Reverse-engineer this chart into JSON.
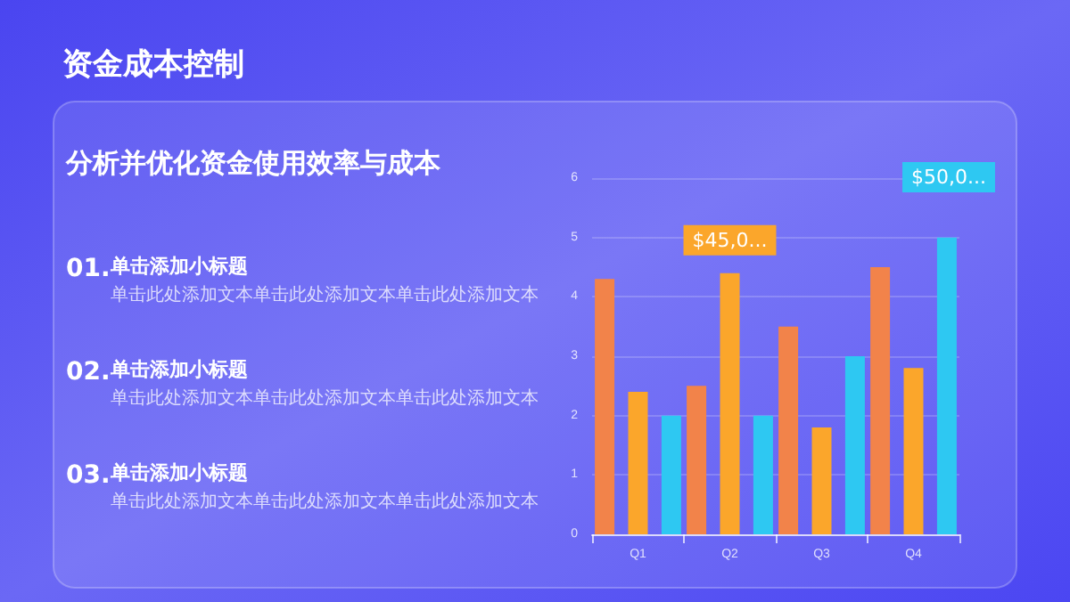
{
  "chart_data": {
    "type": "bar",
    "title": "资金成本控制",
    "subtitle": "分析并优化资金使用效率与成本",
    "categories": [
      "Q1",
      "Q2",
      "Q3",
      "Q4"
    ],
    "series": [
      {
        "color": "#f2834a",
        "values": [
          4.3,
          2.5,
          3.5,
          4.5
        ]
      },
      {
        "color": "#fba62b",
        "values": [
          2.4,
          4.4,
          1.8,
          2.8
        ]
      },
      {
        "color": "#2ec8f2",
        "values": [
          2.0,
          2.0,
          3.0,
          5.0
        ]
      }
    ],
    "ylim": [
      0,
      6
    ],
    "yticks": [
      0,
      1,
      2,
      3,
      4,
      5,
      6
    ],
    "grid": "y",
    "annotations": [
      "01.",
      "单击添加小标题",
      "单击此处添加文本单击此处添加文本单击此处添加文本",
      "02.",
      "单击添加小标题",
      "单击此处添加文本单击此处添加文本单击此处添加文本",
      "03.",
      "单击添加小标题",
      "单击此处添加文本单击此处添加文本单击此处添加文本",
      {
        "text": "$45,0...",
        "x": "Q2",
        "y": 4.4
      },
      "$50,0..."
    ]
  }
}
